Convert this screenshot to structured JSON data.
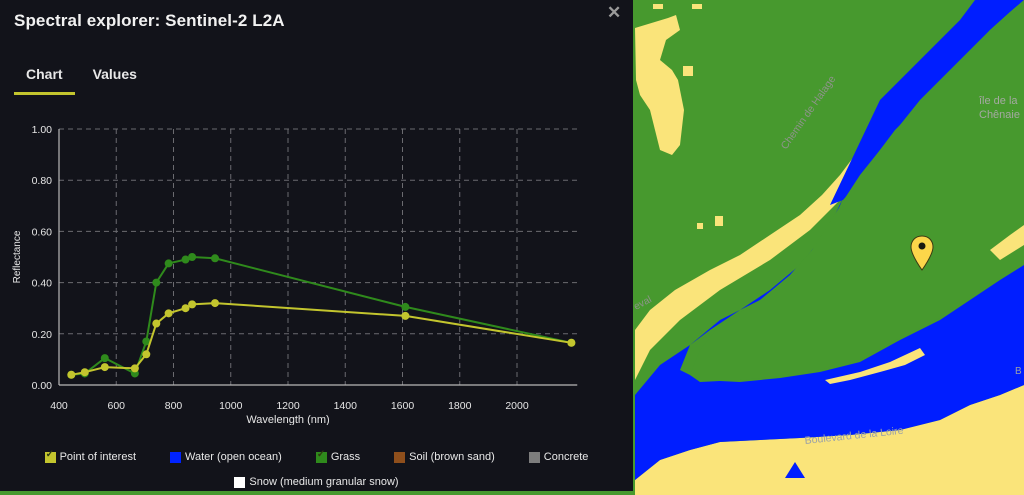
{
  "panel": {
    "title": "Spectral explorer: Sentinel-2 L2A",
    "close_icon": "close-icon",
    "tabs": [
      {
        "label": "Chart",
        "active": true
      },
      {
        "label": "Values",
        "active": false
      }
    ]
  },
  "legend": {
    "items": [
      {
        "label": "Point of interest",
        "color": "#c3c52e",
        "checked": true
      },
      {
        "label": "Water (open ocean)",
        "color": "#0023ff",
        "checked": false
      },
      {
        "label": "Grass",
        "color": "#2f8a1c",
        "checked": true
      },
      {
        "label": "Soil (brown sand)",
        "color": "#8f4f1c",
        "checked": false
      },
      {
        "label": "Concrete",
        "color": "#7d7d7d",
        "checked": false
      },
      {
        "label": "Snow (medium granular snow)",
        "color": "#ffffff",
        "checked": false
      }
    ]
  },
  "map": {
    "colors": {
      "grass": "#47992e",
      "water": "#001eff",
      "sand": "#fae47a"
    },
    "labels": {
      "chemin": "Chemin de Halage",
      "ile_line1": "île de la",
      "ile_line2": "Chênaie",
      "boulevard": "Boulevard de la Loire",
      "eval": "eval",
      "b_edge": "B"
    },
    "marker": "map-pin-icon"
  },
  "chart_data": {
    "type": "line",
    "title": "",
    "xlabel": "Wavelength (nm)",
    "ylabel": "Reflectance",
    "xlim": [
      400,
      2200
    ],
    "ylim": [
      0,
      1.0
    ],
    "xticks": [
      400,
      600,
      800,
      1000,
      1200,
      1400,
      1600,
      1800,
      2000
    ],
    "yticks": [
      "0.00",
      "0.20",
      "0.40",
      "0.60",
      "0.80",
      "1.00"
    ],
    "grid": true,
    "legend_position": "bottom",
    "x": [
      443,
      490,
      560,
      665,
      705,
      740,
      783,
      842,
      865,
      945,
      1610,
      2190
    ],
    "series": [
      {
        "name": "Grass",
        "color": "#2f8a1c",
        "values": [
          0.04,
          0.045,
          0.105,
          0.045,
          0.17,
          0.4,
          0.475,
          0.49,
          0.5,
          0.495,
          0.305,
          0.165
        ]
      },
      {
        "name": "Point of interest",
        "color": "#c3c52e",
        "values": [
          0.04,
          0.05,
          0.07,
          0.065,
          0.12,
          0.24,
          0.28,
          0.3,
          0.315,
          0.32,
          0.27,
          0.165
        ]
      }
    ]
  }
}
